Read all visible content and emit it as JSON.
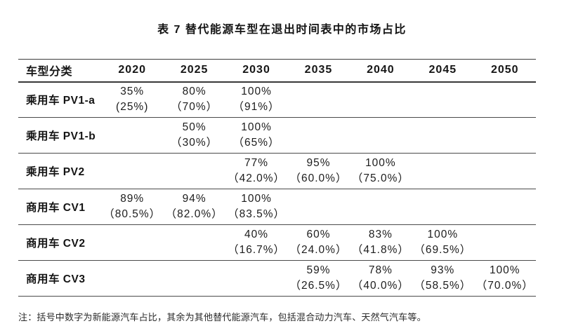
{
  "title": "表 7 替代能源车型在退出时间表中的市场占比",
  "note": "注：括号中数字为新能源汽车占比，其余为其他替代能源汽车，包括混合动力汽车、天然气汽车等。",
  "table": {
    "label_header": "车型分类",
    "year_headers": [
      "2020",
      "2025",
      "2030",
      "2035",
      "2040",
      "2045",
      "2050"
    ],
    "rows": [
      {
        "label": "乘用车 PV1-a",
        "cells": [
          {
            "main": "35%",
            "sub": "(25%)"
          },
          {
            "main": "80%",
            "sub": "（70%）"
          },
          {
            "main": "100%",
            "sub": "（91%）"
          },
          {},
          {},
          {},
          {}
        ]
      },
      {
        "label": "乘用车 PV1-b",
        "cells": [
          {},
          {
            "main": "50%",
            "sub": "（30%）"
          },
          {
            "main": "100%",
            "sub": "（65%）"
          },
          {},
          {},
          {},
          {}
        ]
      },
      {
        "label": "乘用车 PV2",
        "cells": [
          {},
          {},
          {
            "main": "77%",
            "sub": "（42.0%）"
          },
          {
            "main": "95%",
            "sub": "（60.0%）"
          },
          {
            "main": "100%",
            "sub": "（75.0%）"
          },
          {},
          {}
        ]
      },
      {
        "label": "商用车 CV1",
        "cells": [
          {
            "main": "89%",
            "sub": "（80.5%）"
          },
          {
            "main": "94%",
            "sub": "（82.0%）"
          },
          {
            "main": "100%",
            "sub": "（83.5%）"
          },
          {},
          {},
          {},
          {}
        ]
      },
      {
        "label": "商用车 CV2",
        "cells": [
          {},
          {},
          {
            "main": "40%",
            "sub": "（16.7%）"
          },
          {
            "main": "60%",
            "sub": "（24.0%）"
          },
          {
            "main": "83%",
            "sub": "（41.8%）"
          },
          {
            "main": "100%",
            "sub": "（69.5%）"
          },
          {}
        ]
      },
      {
        "label": "商用车 CV3",
        "cells": [
          {},
          {},
          {},
          {
            "main": "59%",
            "sub": "（26.5%）"
          },
          {
            "main": "78%",
            "sub": "（40.0%）"
          },
          {
            "main": "93%",
            "sub": "（58.5%）"
          },
          {
            "main": "100%",
            "sub": "（70.0%）"
          }
        ]
      }
    ]
  }
}
